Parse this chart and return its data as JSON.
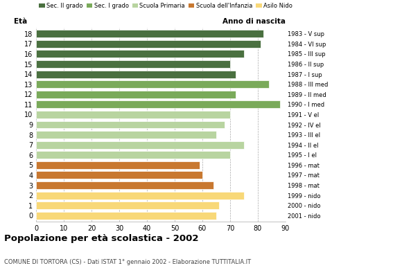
{
  "ages": [
    18,
    17,
    16,
    15,
    14,
    13,
    12,
    11,
    10,
    9,
    8,
    7,
    6,
    5,
    4,
    3,
    2,
    1,
    0
  ],
  "values": [
    82,
    81,
    75,
    70,
    72,
    84,
    72,
    88,
    70,
    68,
    65,
    75,
    70,
    59,
    60,
    64,
    75,
    66,
    65
  ],
  "right_labels": [
    "1983 - V sup",
    "1984 - VI sup",
    "1985 - III sup",
    "1986 - II sup",
    "1987 - I sup",
    "1988 - III med",
    "1989 - II med",
    "1990 - I med",
    "1991 - V el",
    "1992 - IV el",
    "1993 - III el",
    "1994 - II el",
    "1995 - I el",
    "1996 - mat",
    "1997 - mat",
    "1998 - mat",
    "1999 - nido",
    "2000 - nido",
    "2001 - nido"
  ],
  "colors": [
    "#4a7040",
    "#4a7040",
    "#4a7040",
    "#4a7040",
    "#4a7040",
    "#7aaa5a",
    "#7aaa5a",
    "#7aaa5a",
    "#b8d4a0",
    "#b8d4a0",
    "#b8d4a0",
    "#b8d4a0",
    "#b8d4a0",
    "#c87830",
    "#c87830",
    "#c87830",
    "#f8d878",
    "#f8d878",
    "#f8d878"
  ],
  "legend_labels": [
    "Sec. II grado",
    "Sec. I grado",
    "Scuola Primaria",
    "Scuola dell'Infanzia",
    "Asilo Nido"
  ],
  "legend_colors": [
    "#4a7040",
    "#7aaa5a",
    "#b8d4a0",
    "#c87830",
    "#f8d878"
  ],
  "title": "Popolazione per età scolastica - 2002",
  "subtitle": "COMUNE DI TORTORA (CS) - Dati ISTAT 1° gennaio 2002 - Elaborazione TUTTITALIA.IT",
  "xlabel_eta": "Età",
  "xlabel_anno": "Anno di nascita",
  "xlim": [
    0,
    90
  ],
  "xticks": [
    0,
    10,
    20,
    30,
    40,
    50,
    60,
    70,
    80,
    90
  ],
  "background_color": "#ffffff",
  "bar_height": 0.75
}
